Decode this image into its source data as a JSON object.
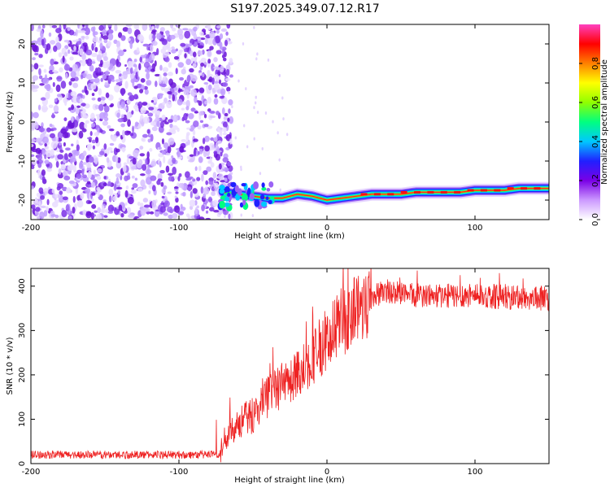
{
  "figure_title": "S197.2025.349.07.12.R17",
  "chart_data": [
    {
      "type": "heatmap",
      "title": "S197.2025.349.07.12.R17",
      "xlabel": "Height of straight line (km)",
      "ylabel": "Frequency (Hz)",
      "xlim": [
        -200,
        150
      ],
      "ylim": [
        -25,
        25
      ],
      "xticks": [
        -200,
        -100,
        0,
        100
      ],
      "xtick_labels": [
        "-200",
        "-100",
        "0",
        "100"
      ],
      "yticks": [
        -20,
        -10,
        0,
        10,
        20
      ],
      "ytick_labels": [
        "-20",
        "-10",
        "0",
        "10",
        "20"
      ],
      "noise_region_x": [
        -200,
        -70
      ],
      "signal_trace": {
        "x": [
          -70,
          -60,
          -50,
          -40,
          -30,
          -20,
          -10,
          0,
          10,
          20,
          30,
          40,
          50,
          60,
          70,
          80,
          90,
          100,
          110,
          120,
          130,
          140,
          150
        ],
        "y": [
          -18,
          -18.5,
          -19,
          -19.5,
          -19.5,
          -18.5,
          -19,
          -20,
          -19.5,
          -19,
          -18.5,
          -18.5,
          -18.5,
          -18,
          -18,
          -18,
          -18,
          -17.5,
          -17.5,
          -17.5,
          -17,
          -17,
          -17
        ]
      },
      "colorbar": {
        "label": "Normalized spectral amplitude",
        "range": [
          0,
          1
        ],
        "ticks": [
          0.0,
          0.2,
          0.4,
          0.6,
          0.8
        ],
        "tick_labels": [
          "0.0",
          "0.2",
          "0.4",
          "0.6",
          "0.8"
        ],
        "colormap": [
          "#ffffff",
          "#cc99ff",
          "#7a00e6",
          "#2020ff",
          "#00c8ff",
          "#00ff80",
          "#90ff00",
          "#ffff00",
          "#ff8000",
          "#ff0000",
          "#ff40c0"
        ]
      }
    },
    {
      "type": "line",
      "xlabel": "Height of straight line (km)",
      "ylabel": "SNR (10 * v/v)",
      "xlim": [
        -200,
        150
      ],
      "ylim": [
        0,
        440
      ],
      "xticks": [
        -200,
        -100,
        0,
        100
      ],
      "xtick_labels": [
        "-200",
        "-100",
        "0",
        "100"
      ],
      "yticks": [
        0,
        100,
        200,
        300,
        400
      ],
      "ytick_labels": [
        "0",
        "100",
        "200",
        "300",
        "400"
      ],
      "series": [
        {
          "name": "SNR",
          "color": "#ee2222",
          "x": [
            -200,
            -150,
            -100,
            -72,
            -70,
            -65,
            -60,
            -50,
            -40,
            -30,
            -20,
            -10,
            0,
            10,
            20,
            30,
            40,
            50,
            60,
            80,
            100,
            120,
            150
          ],
          "y": [
            20,
            20,
            20,
            20,
            50,
            80,
            90,
            110,
            150,
            175,
            200,
            240,
            280,
            320,
            350,
            375,
            390,
            385,
            380,
            378,
            380,
            375,
            372
          ]
        }
      ]
    }
  ]
}
